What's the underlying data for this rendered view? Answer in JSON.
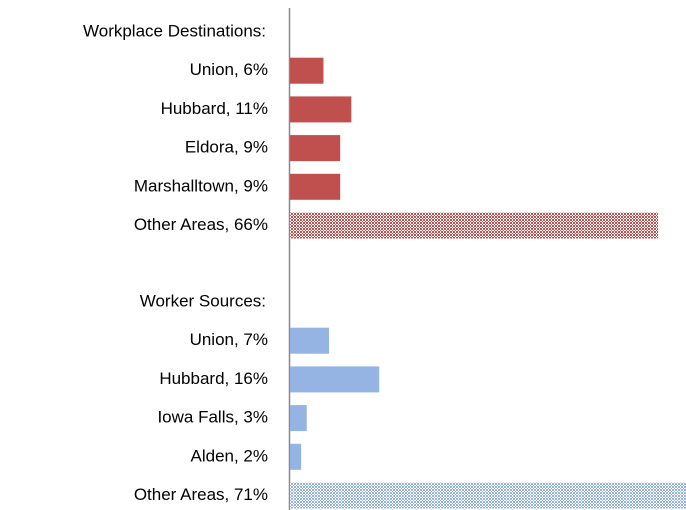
{
  "chart_data": {
    "type": "bar",
    "orientation": "horizontal",
    "xlim": [
      0,
      71
    ],
    "series": [
      {
        "name": "Workplace Destinations:",
        "color": "#c0504d",
        "categories": [
          "Union, 6%",
          "Hubbard, 11%",
          "Eldora, 9%",
          "Marshalltown, 9%",
          "Other Areas, 66%"
        ],
        "values": [
          6,
          11,
          9,
          9,
          66
        ],
        "patterned": [
          false,
          false,
          false,
          false,
          true
        ]
      },
      {
        "name": "Worker Sources:",
        "color": "#95b3e3",
        "categories": [
          "Union, 7%",
          "Hubbard, 16%",
          "Iowa Falls, 3%",
          "Alden, 2%",
          "Other Areas, 71%"
        ],
        "values": [
          7,
          16,
          3,
          2,
          71
        ],
        "patterned": [
          false,
          false,
          false,
          false,
          true
        ]
      }
    ]
  }
}
